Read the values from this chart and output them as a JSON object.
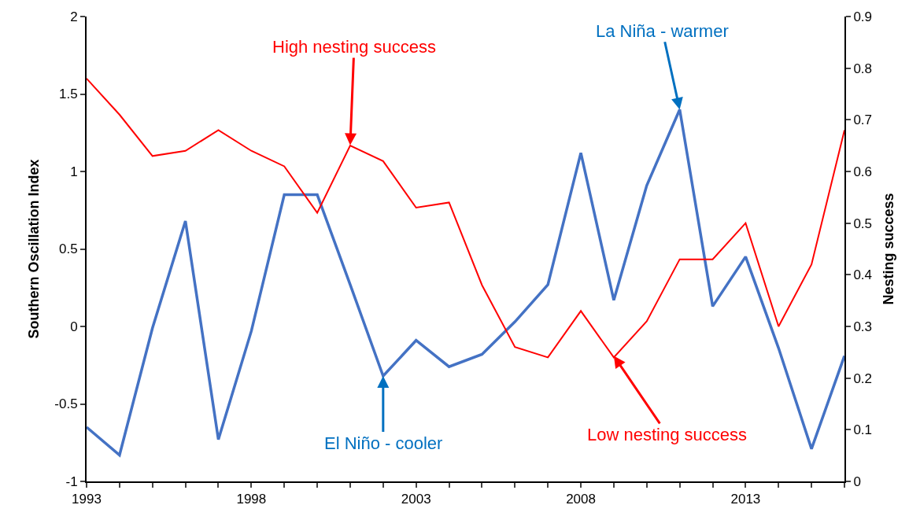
{
  "chart_data": {
    "type": "line",
    "ylabel": "Southern Oscillation Index",
    "y2label": "Nesting success",
    "x": [
      1993,
      1994,
      1995,
      1996,
      1997,
      1998,
      1999,
      2000,
      2001,
      2002,
      2003,
      2004,
      2005,
      2006,
      2007,
      2008,
      2009,
      2010,
      2011,
      2012,
      2013,
      2014,
      2015,
      2016
    ],
    "series": [
      {
        "color": "#4472c4",
        "values": [
          -0.65,
          -0.83,
          -0.01,
          0.68,
          -0.73,
          -0.03,
          0.85,
          0.85,
          0.27,
          -0.32,
          -0.09,
          -0.26,
          -0.18,
          0.03,
          0.27,
          1.12,
          0.17,
          0.91,
          1.4,
          0.13,
          0.45,
          -0.14,
          -0.79,
          -0.19
        ]
      },
      {
        "color": "#ff0000",
        "axis": "y2",
        "values": [
          0.78,
          0.71,
          0.63,
          0.64,
          0.68,
          0.64,
          0.61,
          0.52,
          0.65,
          0.62,
          0.53,
          0.54,
          0.38,
          0.26,
          0.24,
          0.33,
          0.24,
          0.31,
          0.43,
          0.43,
          0.5,
          0.3,
          0.42,
          0.68
        ]
      }
    ],
    "xlim": [
      1993,
      2016
    ],
    "xticks": [
      1993,
      {
        "value": 1994,
        "label": null
      },
      {
        "value": 1995,
        "label": null
      },
      {
        "value": 1996,
        "label": null
      },
      {
        "value": 1997,
        "label": null
      },
      1998,
      {
        "value": 1999,
        "label": null
      },
      {
        "value": 2000,
        "label": null
      },
      {
        "value": 2001,
        "label": null
      },
      {
        "value": 2002,
        "label": null
      },
      2003,
      {
        "value": 2004,
        "label": null
      },
      {
        "value": 2005,
        "label": null
      },
      {
        "value": 2006,
        "label": null
      },
      {
        "value": 2007,
        "label": null
      },
      2008,
      {
        "value": 2009,
        "label": null
      },
      {
        "value": 2010,
        "label": null
      },
      {
        "value": 2011,
        "label": null
      },
      {
        "value": 2012,
        "label": null
      },
      2013,
      {
        "value": 2014,
        "label": null
      },
      {
        "value": 2015,
        "label": null
      },
      {
        "value": 2016,
        "label": null
      }
    ],
    "ylim": [
      -1,
      2
    ],
    "yticks": [
      -1,
      -0.5,
      0,
      0.5,
      1,
      1.5,
      2
    ],
    "y2lim": [
      0,
      0.9
    ],
    "y2ticks": [
      0,
      0.1,
      0.2,
      0.3,
      0.4,
      0.5,
      0.6,
      0.7,
      0.8,
      0.9
    ],
    "annotations": [
      {
        "text": "High nesting success",
        "x": 2001,
        "y": 1.17
      },
      {
        "text": "El Niño - cooler",
        "x": 2002,
        "y": -0.32
      },
      {
        "text": "La Niña - warmer",
        "x": 2011,
        "y": 1.4
      },
      {
        "text": "Low nesting success",
        "x": 2009,
        "y": -0.19
      }
    ],
    "grid": false,
    "marker": "none",
    "line_style": "solid"
  }
}
